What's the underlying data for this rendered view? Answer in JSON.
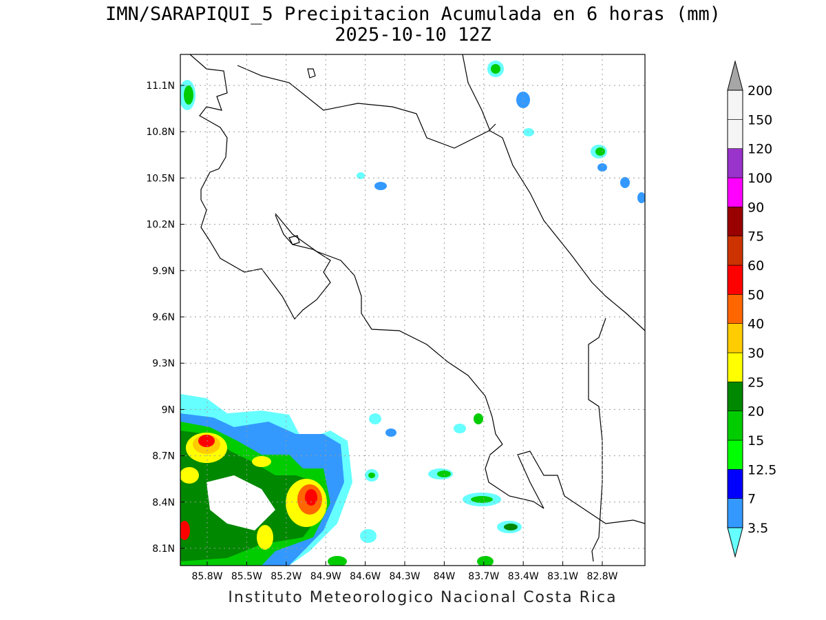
{
  "title": {
    "line1": "IMN/SARAPIQUI_5 Precipitacion Acumulada en 6 horas (mm)",
    "line2": "2025-10-10 12Z"
  },
  "footer": "Instituto Meteorologico Nacional Costa Rica",
  "map": {
    "lat_ticks": [
      "11.1N",
      "10.8N",
      "10.5N",
      "10.2N",
      "9.9N",
      "9.6N",
      "9.3N",
      "9N",
      "8.7N",
      "8.4N",
      "8.1N"
    ],
    "lon_ticks": [
      "85.8W",
      "85.5W",
      "85.2W",
      "84.9W",
      "84.6W",
      "84.3W",
      "84W",
      "83.7W",
      "83.4W",
      "83.1W",
      "82.8W"
    ],
    "grid": true
  },
  "colorbar": {
    "levels": [
      "3.5",
      "7",
      "12.5",
      "15",
      "20",
      "25",
      "30",
      "40",
      "50",
      "60",
      "75",
      "90",
      "100",
      "120",
      "150",
      "200"
    ],
    "colors": [
      "#66ffff",
      "#3399ff",
      "#0000ff",
      "#00ff00",
      "#00cc00",
      "#008800",
      "#ffff00",
      "#ffcc00",
      "#ff6600",
      "#ff0000",
      "#cc3300",
      "#990000",
      "#ff00ff",
      "#9933cc",
      "#f5f5f5",
      "#a6a6a6"
    ]
  }
}
